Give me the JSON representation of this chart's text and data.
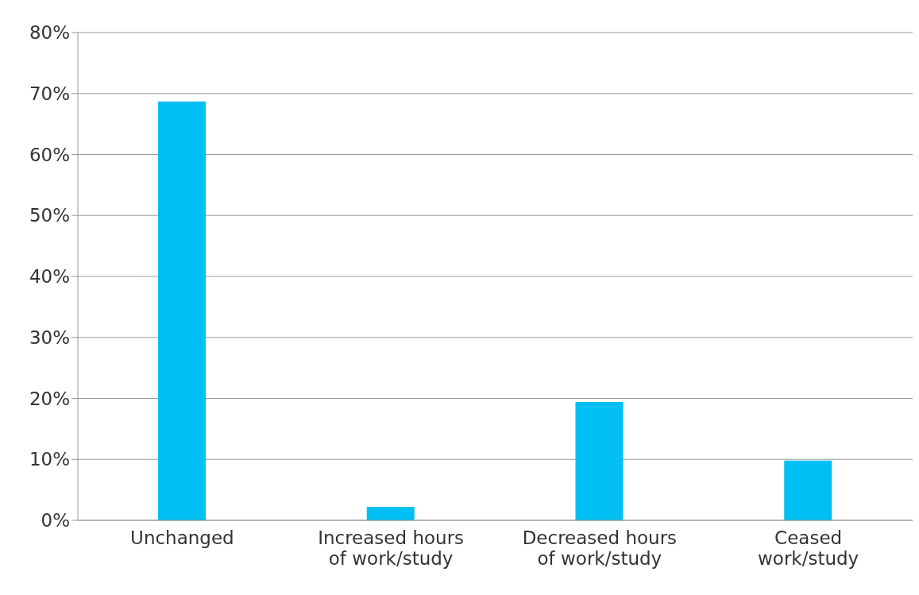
{
  "chart_data": {
    "type": "bar",
    "categories": [
      "Unchanged",
      "Increased hours of work/study",
      "Decreased hours of work/study",
      "Ceased work/study"
    ],
    "values": [
      68.7,
      2.2,
      19.4,
      9.8
    ],
    "color": "#00bff3",
    "ylim": [
      0,
      80
    ],
    "yticks": [
      {
        "value": 0,
        "label": "0%"
      },
      {
        "value": 10,
        "label": "10%"
      },
      {
        "value": 20,
        "label": "20%"
      },
      {
        "value": 30,
        "label": "30%"
      },
      {
        "value": 40,
        "label": "40%"
      },
      {
        "value": 50,
        "label": "50%"
      },
      {
        "value": 60,
        "label": "60%"
      },
      {
        "value": 70,
        "label": "70%"
      },
      {
        "value": 80,
        "label": "80%"
      }
    ],
    "grid": "y"
  }
}
